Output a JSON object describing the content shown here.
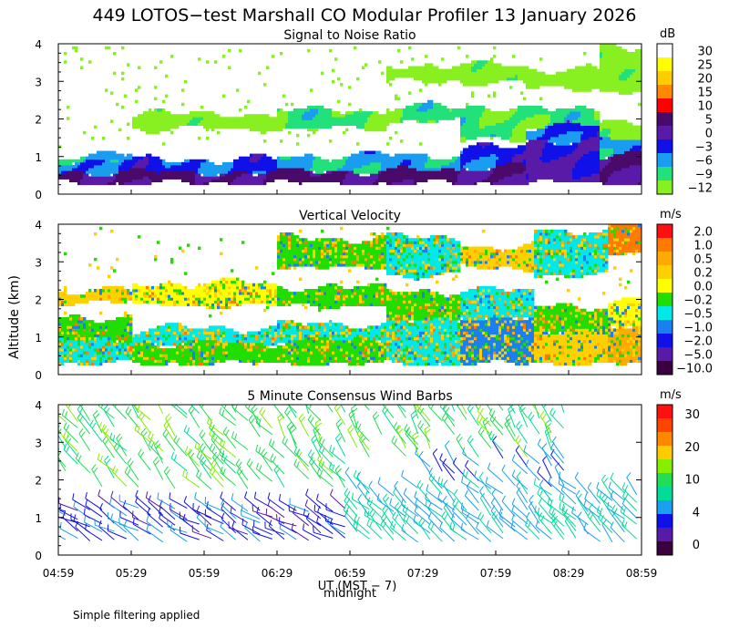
{
  "figure": {
    "title": "449 LOTOS−test Marshall CO Modular Profiler 13 January 2026",
    "ylabel": "Altitude (km)",
    "xlabel": "UT  (MST − 7)",
    "midnight_label": "midnight",
    "footnote": "Simple filtering applied",
    "time_ticks": [
      "04:59",
      "05:29",
      "05:59",
      "06:29",
      "06:59",
      "07:29",
      "07:59",
      "08:29",
      "08:59"
    ]
  },
  "chart_data": [
    {
      "type": "heatmap",
      "title": "Signal to Noise Ratio",
      "xlabel": "UT (MST - 7)",
      "ylabel": "Altitude (km)",
      "xlim": [
        "04:59",
        "08:59"
      ],
      "ylim": [
        0,
        4
      ],
      "yticks": [
        "0",
        "1",
        "2",
        "3",
        "4"
      ],
      "colorbar_unit": "dB",
      "colorbar_labels": [
        "30",
        "25",
        "20",
        "15",
        "10",
        "5",
        "0",
        "−3",
        "−6",
        "−9",
        "−12"
      ],
      "colorbar_colors": [
        "#ffffff",
        "#ffff00",
        "#ffcc00",
        "#ff8800",
        "#ff0000",
        "#4a0a6a",
        "#5a1aa8",
        "#1010e8",
        "#1a9cf0",
        "#22e07a",
        "#88f020"
      ],
      "profile": [
        {
          "time_h": 0.0,
          "layers": [
            {
              "bottom": 0.25,
              "top": 0.55,
              "value_db": 5
            },
            {
              "bottom": 0.55,
              "top": 0.85,
              "value_db": -3
            },
            {
              "bottom": 0.85,
              "top": 1.0,
              "value_db": -6
            }
          ]
        },
        {
          "time_h": 1.0,
          "layers": [
            {
              "bottom": 0.25,
              "top": 0.55,
              "value_db": 5
            },
            {
              "bottom": 0.55,
              "top": 0.9,
              "value_db": -3
            },
            {
              "bottom": 1.7,
              "top": 2.1,
              "value_db": -12
            }
          ]
        },
        {
          "time_h": 2.0,
          "layers": [
            {
              "bottom": 0.25,
              "top": 0.6,
              "value_db": 5
            },
            {
              "bottom": 0.6,
              "top": 1.0,
              "value_db": -6
            },
            {
              "bottom": 1.7,
              "top": 2.2,
              "value_db": -9
            }
          ]
        },
        {
          "time_h": 2.5,
          "layers": [
            {
              "bottom": 0.25,
              "top": 0.6,
              "value_db": 5
            },
            {
              "bottom": 0.6,
              "top": 1.0,
              "value_db": -6
            },
            {
              "bottom": 1.9,
              "top": 2.3,
              "value_db": -9
            },
            {
              "bottom": 3.0,
              "top": 3.4,
              "value_db": -12
            }
          ]
        },
        {
          "time_h": 3.0,
          "layers": [
            {
              "bottom": 0.25,
              "top": 0.7,
              "value_db": 5
            },
            {
              "bottom": 0.7,
              "top": 1.2,
              "value_db": -3
            },
            {
              "bottom": 1.4,
              "top": 2.3,
              "value_db": -9
            },
            {
              "bottom": 2.9,
              "top": 3.4,
              "value_db": -12
            }
          ]
        },
        {
          "time_h": 3.4,
          "layers": [
            {
              "bottom": 0.25,
              "top": 1.4,
              "value_db": 0
            },
            {
              "bottom": 1.4,
              "top": 1.8,
              "value_db": -3
            },
            {
              "bottom": 1.8,
              "top": 2.2,
              "value_db": -9
            },
            {
              "bottom": 2.8,
              "top": 3.3,
              "value_db": -12
            }
          ]
        },
        {
          "time_h": 4.0,
          "layers": [
            {
              "bottom": 0.25,
              "top": 1.0,
              "value_db": 5
            },
            {
              "bottom": 1.0,
              "top": 1.4,
              "value_db": -6
            },
            {
              "bottom": 1.4,
              "top": 1.9,
              "value_db": -12
            },
            {
              "bottom": 2.7,
              "top": 3.9,
              "value_db": -12
            }
          ]
        }
      ]
    },
    {
      "type": "heatmap",
      "title": "Vertical Velocity",
      "xlabel": "UT (MST - 7)",
      "ylabel": "Altitude (km)",
      "xlim": [
        "04:59",
        "08:59"
      ],
      "ylim": [
        0,
        4
      ],
      "yticks": [
        "0",
        "1",
        "2",
        "3",
        "4"
      ],
      "colorbar_unit": "m/s",
      "colorbar_labels": [
        "2.0",
        "1.0",
        "0.5",
        "0.2",
        "0.0",
        "−0.2",
        "−0.5",
        "−1.0",
        "−2.0",
        "−5.0",
        "−10.0"
      ],
      "colorbar_colors": [
        "#ff1010",
        "#ff7a00",
        "#ffaa00",
        "#ffd000",
        "#ffff00",
        "#22dd00",
        "#00e8e8",
        "#1a80f0",
        "#1010e8",
        "#5a1aa8",
        "#3a0040"
      ],
      "profile": [
        {
          "time_h": 0.0,
          "layers": [
            {
              "bottom": 0.25,
              "top": 0.9,
              "value_ms": -0.5
            },
            {
              "bottom": 0.9,
              "top": 1.5,
              "value_ms": -0.2
            },
            {
              "bottom": 1.9,
              "top": 2.2,
              "value_ms": 0.2
            }
          ]
        },
        {
          "time_h": 1.0,
          "layers": [
            {
              "bottom": 0.25,
              "top": 0.8,
              "value_ms": -0.2
            },
            {
              "bottom": 0.8,
              "top": 1.2,
              "value_ms": -0.5
            },
            {
              "bottom": 1.8,
              "top": 2.4,
              "value_ms": 0.0
            }
          ]
        },
        {
          "time_h": 2.0,
          "layers": [
            {
              "bottom": 0.25,
              "top": 0.9,
              "value_ms": -0.2
            },
            {
              "bottom": 0.9,
              "top": 1.3,
              "value_ms": -0.5
            },
            {
              "bottom": 1.8,
              "top": 2.3,
              "value_ms": -0.2
            },
            {
              "bottom": 2.8,
              "top": 3.6,
              "value_ms": -0.2
            }
          ]
        },
        {
          "time_h": 2.5,
          "layers": [
            {
              "bottom": 0.25,
              "top": 1.4,
              "value_ms": -0.5
            },
            {
              "bottom": 1.4,
              "top": 2.2,
              "value_ms": -0.2
            },
            {
              "bottom": 2.6,
              "top": 3.6,
              "value_ms": -0.5
            }
          ]
        },
        {
          "time_h": 3.0,
          "layers": [
            {
              "bottom": 0.25,
              "top": 1.5,
              "value_ms": -1.0
            },
            {
              "bottom": 1.5,
              "top": 2.2,
              "value_ms": -0.5
            },
            {
              "bottom": 2.8,
              "top": 3.4,
              "value_ms": 0.2
            }
          ]
        },
        {
          "time_h": 3.5,
          "layers": [
            {
              "bottom": 0.25,
              "top": 1.1,
              "value_ms": 0.2
            },
            {
              "bottom": 1.1,
              "top": 1.8,
              "value_ms": -0.2
            },
            {
              "bottom": 2.6,
              "top": 3.8,
              "value_ms": -0.5
            }
          ]
        },
        {
          "time_h": 4.0,
          "layers": [
            {
              "bottom": 0.25,
              "top": 1.3,
              "value_ms": 0.5
            },
            {
              "bottom": 1.3,
              "top": 1.9,
              "value_ms": 0.0
            },
            {
              "bottom": 3.2,
              "top": 4.0,
              "value_ms": 1.0
            }
          ]
        }
      ]
    },
    {
      "type": "scatter",
      "subtype": "wind_barbs",
      "title": "5 Minute Consensus Wind Barbs",
      "xlabel": "UT (MST - 7)",
      "ylabel": "Altitude (km)",
      "xlim": [
        "04:59",
        "08:59"
      ],
      "ylim": [
        0,
        4
      ],
      "yticks": [
        "0",
        "1",
        "2",
        "3",
        "4"
      ],
      "colorbar_unit": "m/s",
      "colorbar_labels": [
        "30",
        "20",
        "10",
        "4",
        "0"
      ],
      "colorbar_colors": [
        "#ff1010",
        "#ff4400",
        "#ff8800",
        "#ffcc00",
        "#88ee00",
        "#22dd55",
        "#00dd99",
        "#1aa0f0",
        "#1010e8",
        "#5a1aa8",
        "#3a0040"
      ],
      "time_step_min": 5,
      "levels_km": [
        0.4,
        0.6,
        0.8,
        1.0,
        1.2,
        1.4,
        1.6,
        1.8,
        2.0,
        2.2,
        2.4,
        2.6,
        2.8,
        3.0,
        3.2,
        3.4,
        3.6,
        3.8
      ],
      "speed_ms_by_period": [
        {
          "time_range": "04:59-06:59",
          "altitude_range_km": [
            0.3,
            1.3
          ],
          "speed_ms": 4,
          "direction_deg": 300
        },
        {
          "time_range": "04:59-06:59",
          "altitude_range_km": [
            1.7,
            3.8
          ],
          "speed_ms": 10,
          "direction_deg": 320
        },
        {
          "time_range": "06:59-08:59",
          "altitude_range_km": [
            0.3,
            1.8
          ],
          "speed_ms": 7,
          "direction_deg": 315
        },
        {
          "time_range": "07:29-08:29",
          "altitude_range_km": [
            1.8,
            2.6
          ],
          "speed_ms": 5,
          "direction_deg": 320
        },
        {
          "time_range": "06:29-08:29",
          "altitude_range_km": [
            2.6,
            3.9
          ],
          "speed_ms": 10,
          "direction_deg": 330
        }
      ]
    }
  ]
}
